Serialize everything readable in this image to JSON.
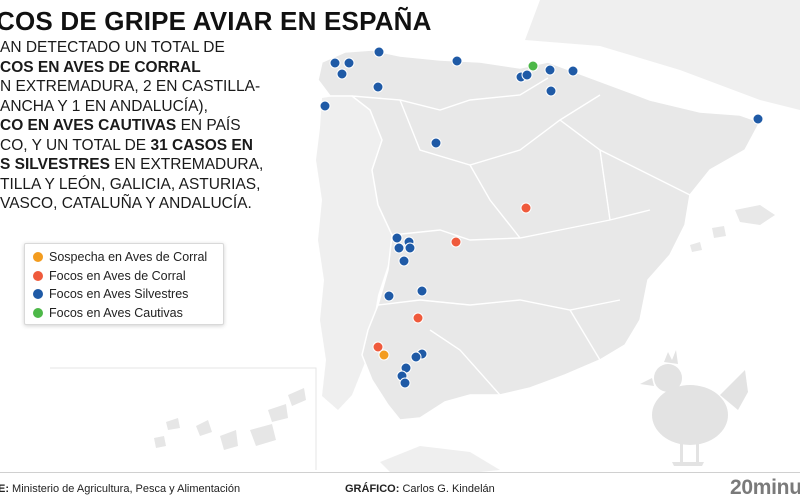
{
  "header": {
    "title": "COS DE GRIPE AVIAR EN ESPAÑA"
  },
  "summary": {
    "l1": "AN DETECTADO UN TOTAL DE",
    "l2": "COS EN AVES DE CORRAL",
    "l3": "N EXTREMADURA, 2 EN CASTILLA-",
    "l4": "ANCHA Y 1 EN ANDALUCÍA),",
    "l5a": "CO EN AVES CAUTIVAS",
    "l5b": " EN PAÍS",
    "l6a": "CO, Y UN TOTAL DE ",
    "l6b": "31 CASOS EN",
    "l7a": "S SILVESTRES",
    "l7b": " EN EXTREMADURA,",
    "l8": "TILLA Y LEÓN, GALICIA, ASTURIAS,",
    "l9": "VASCO, CATALUÑA Y ANDALUCÍA."
  },
  "legend": [
    {
      "label": "Sospecha en Aves de Corral",
      "color": "#f39c1f"
    },
    {
      "label": "Focos en Aves de Corral",
      "color": "#ef5a3c"
    },
    {
      "label": "Focos en Aves Silvestres",
      "color": "#1f5aa6"
    },
    {
      "label": "Focos en Aves Cautivas",
      "color": "#4db848"
    }
  ],
  "colors": {
    "land": "#ececec",
    "sea": "#ffffff",
    "borders": "#ffffff"
  },
  "footer": {
    "source_label": "E:",
    "source_text": " Ministerio de Agricultura, Pesca y Alimentación",
    "credit_label": "GRÁFICO:",
    "credit_text": " Carlos G. Kindelán",
    "brand": "20minu"
  },
  "icons": {
    "decoration": "hen-icon"
  }
}
